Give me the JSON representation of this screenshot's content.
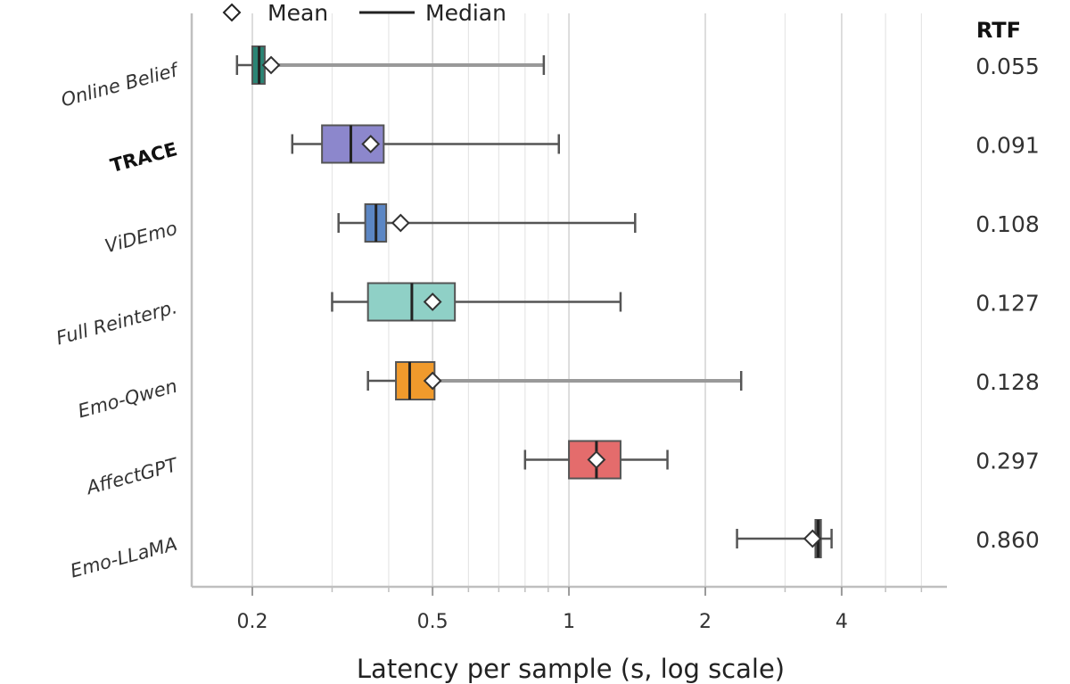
{
  "chart_data": {
    "type": "boxplot",
    "orientation": "horizontal",
    "xlabel": "Latency per sample (s, log scale)",
    "xscale": "log",
    "xlim": [
      0.155,
      6.5
    ],
    "xticks": [
      {
        "value": 0.2,
        "label": "0.2"
      },
      {
        "value": 0.5,
        "label": "0.5"
      },
      {
        "value": 1,
        "label": "1"
      },
      {
        "value": 2,
        "label": "2"
      },
      {
        "value": 4,
        "label": "4"
      }
    ],
    "grid": true,
    "legend": {
      "position": "top",
      "items": [
        {
          "symbol": "diamond",
          "label": "Mean"
        },
        {
          "symbol": "line",
          "label": "Median"
        }
      ]
    },
    "rtf_header": "RTF",
    "series": [
      {
        "name": "Online Belief",
        "whisker_low": 0.185,
        "q1": 0.2,
        "median": 0.207,
        "q3": 0.213,
        "whisker_high": 0.88,
        "mean": 0.22,
        "rtf": "0.055",
        "color": "#2a8474",
        "bold": false
      },
      {
        "name": "TRACE",
        "whisker_low": 0.245,
        "q1": 0.285,
        "median": 0.33,
        "q3": 0.39,
        "whisker_high": 0.95,
        "mean": 0.365,
        "rtf": "0.091",
        "color": "#8c87cc",
        "bold": true
      },
      {
        "name": "ViDEmo",
        "whisker_low": 0.31,
        "q1": 0.355,
        "median": 0.375,
        "q3": 0.395,
        "whisker_high": 1.4,
        "mean": 0.425,
        "rtf": "0.108",
        "color": "#5b86c4",
        "bold": false
      },
      {
        "name": "Full Reinterp.",
        "whisker_low": 0.3,
        "q1": 0.36,
        "median": 0.45,
        "q3": 0.56,
        "whisker_high": 1.3,
        "mean": 0.5,
        "rtf": "0.127",
        "color": "#8fd0c6",
        "bold": false
      },
      {
        "name": "Emo-Qwen",
        "whisker_low": 0.36,
        "q1": 0.415,
        "median": 0.445,
        "q3": 0.505,
        "whisker_high": 2.4,
        "mean": 0.5,
        "rtf": "0.128",
        "color": "#f09a2c",
        "bold": false
      },
      {
        "name": "AffectGPT",
        "whisker_low": 0.8,
        "q1": 1.0,
        "median": 1.15,
        "q3": 1.3,
        "whisker_high": 1.65,
        "mean": 1.15,
        "rtf": "0.297",
        "color": "#e46c6c",
        "bold": false
      },
      {
        "name": "Emo-LLaMA",
        "whisker_low": 2.35,
        "q1": 3.5,
        "median": 3.55,
        "q3": 3.6,
        "whisker_high": 3.8,
        "mean": 3.45,
        "rtf": "0.860",
        "color": "#555555",
        "bold": false
      }
    ]
  }
}
